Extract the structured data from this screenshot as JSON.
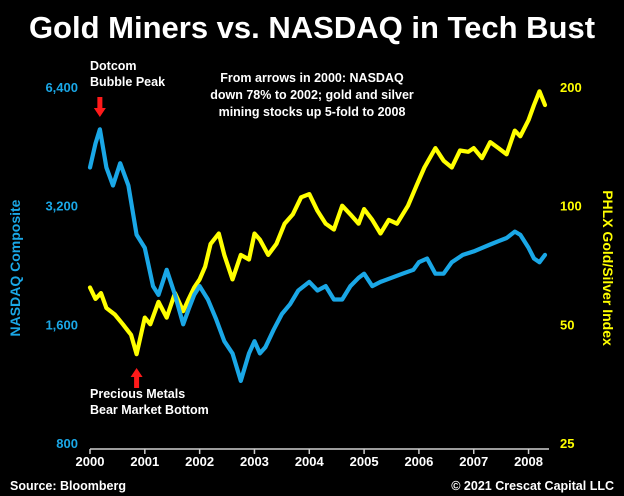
{
  "chart_data": {
    "type": "line",
    "title": "Gold Miners vs. NASDAQ in Tech Bust",
    "annotations": {
      "peak": [
        "Dotcom",
        "Bubble Peak"
      ],
      "bottom": [
        "Precious Metals",
        "Bear Market Bottom"
      ],
      "note": [
        "From arrows in 2000: NASDAQ",
        "down 78% to 2002; gold and silver",
        "mining stocks up 5-fold to 2008"
      ]
    },
    "source": "Source: Bloomberg",
    "copyright": "© 2021 Crescat Capital LLC",
    "colors": {
      "nasdaq": "#1aa7e6",
      "gold": "#ffff00",
      "arrow": "#ff1a1a",
      "background": "#000000",
      "text": "#ffffff"
    },
    "x_axis": {
      "ticks": [
        "2000",
        "2001",
        "2002",
        "2003",
        "2004",
        "2005",
        "2006",
        "2007",
        "2008"
      ],
      "range": [
        2000,
        2008.3
      ]
    },
    "left_axis": {
      "label": "NASDAQ Composite",
      "scale": "log",
      "range": [
        800,
        6400
      ],
      "ticks": [
        "6,400",
        "3,200",
        "1,600",
        "800"
      ],
      "tick_values": [
        6400,
        3200,
        1600,
        800
      ]
    },
    "right_axis": {
      "label": "PHLX Gold/Silver Index",
      "scale": "log",
      "range": [
        25,
        200
      ],
      "ticks": [
        "200",
        "100",
        "50",
        "25"
      ],
      "tick_values": [
        200,
        100,
        50,
        25
      ]
    },
    "arrows": [
      {
        "at": 2000.18,
        "direction": "down",
        "series": "nasdaq"
      },
      {
        "at": 2000.85,
        "direction": "up",
        "series": "gold"
      }
    ],
    "series": [
      {
        "name": "NASDAQ Composite",
        "axis": "left",
        "x": [
          2000.0,
          2000.1,
          2000.18,
          2000.3,
          2000.42,
          2000.55,
          2000.7,
          2000.85,
          2001.0,
          2001.15,
          2001.25,
          2001.4,
          2001.55,
          2001.7,
          2001.8,
          2001.9,
          2002.0,
          2002.15,
          2002.3,
          2002.45,
          2002.6,
          2002.75,
          2002.9,
          2003.0,
          2003.1,
          2003.2,
          2003.35,
          2003.5,
          2003.65,
          2003.8,
          2004.0,
          2004.15,
          2004.3,
          2004.45,
          2004.6,
          2004.75,
          2004.9,
          2005.0,
          2005.15,
          2005.3,
          2005.5,
          2005.7,
          2005.9,
          2006.0,
          2006.15,
          2006.3,
          2006.45,
          2006.6,
          2006.8,
          2007.0,
          2007.15,
          2007.3,
          2007.45,
          2007.6,
          2007.75,
          2007.85,
          2008.0,
          2008.1,
          2008.2,
          2008.3
        ],
        "values": [
          4000,
          4600,
          5000,
          4000,
          3600,
          4100,
          3600,
          2700,
          2500,
          2000,
          1900,
          2200,
          1900,
          1600,
          1750,
          1900,
          2000,
          1850,
          1650,
          1450,
          1350,
          1150,
          1350,
          1450,
          1350,
          1400,
          1550,
          1700,
          1800,
          1950,
          2050,
          1950,
          2000,
          1850,
          1850,
          2000,
          2100,
          2150,
          2000,
          2050,
          2100,
          2150,
          2200,
          2300,
          2350,
          2150,
          2150,
          2300,
          2400,
          2450,
          2500,
          2550,
          2600,
          2650,
          2750,
          2700,
          2500,
          2350,
          2300,
          2400
        ]
      },
      {
        "name": "PHLX Gold/Silver Index",
        "axis": "right",
        "x": [
          2000.0,
          2000.1,
          2000.2,
          2000.3,
          2000.45,
          2000.6,
          2000.75,
          2000.85,
          2001.0,
          2001.1,
          2001.25,
          2001.4,
          2001.55,
          2001.7,
          2001.8,
          2001.9,
          2002.0,
          2002.1,
          2002.2,
          2002.35,
          2002.45,
          2002.6,
          2002.75,
          2002.9,
          2003.0,
          2003.1,
          2003.25,
          2003.4,
          2003.55,
          2003.7,
          2003.85,
          2004.0,
          2004.15,
          2004.3,
          2004.45,
          2004.6,
          2004.75,
          2004.9,
          2005.0,
          2005.15,
          2005.3,
          2005.45,
          2005.6,
          2005.8,
          2005.95,
          2006.1,
          2006.3,
          2006.45,
          2006.6,
          2006.75,
          2006.9,
          2007.0,
          2007.15,
          2007.3,
          2007.45,
          2007.6,
          2007.75,
          2007.85,
          2008.0,
          2008.1,
          2008.2,
          2008.3
        ],
        "values": [
          62,
          58,
          60,
          55,
          53,
          50,
          47,
          42,
          52,
          50,
          57,
          52,
          60,
          54,
          58,
          62,
          65,
          70,
          80,
          85,
          75,
          65,
          75,
          73,
          85,
          82,
          75,
          80,
          90,
          95,
          105,
          107,
          97,
          90,
          87,
          100,
          95,
          90,
          98,
          92,
          85,
          92,
          90,
          100,
          112,
          125,
          140,
          130,
          125,
          138,
          137,
          140,
          132,
          145,
          140,
          135,
          155,
          150,
          165,
          180,
          195,
          180
        ]
      }
    ]
  }
}
